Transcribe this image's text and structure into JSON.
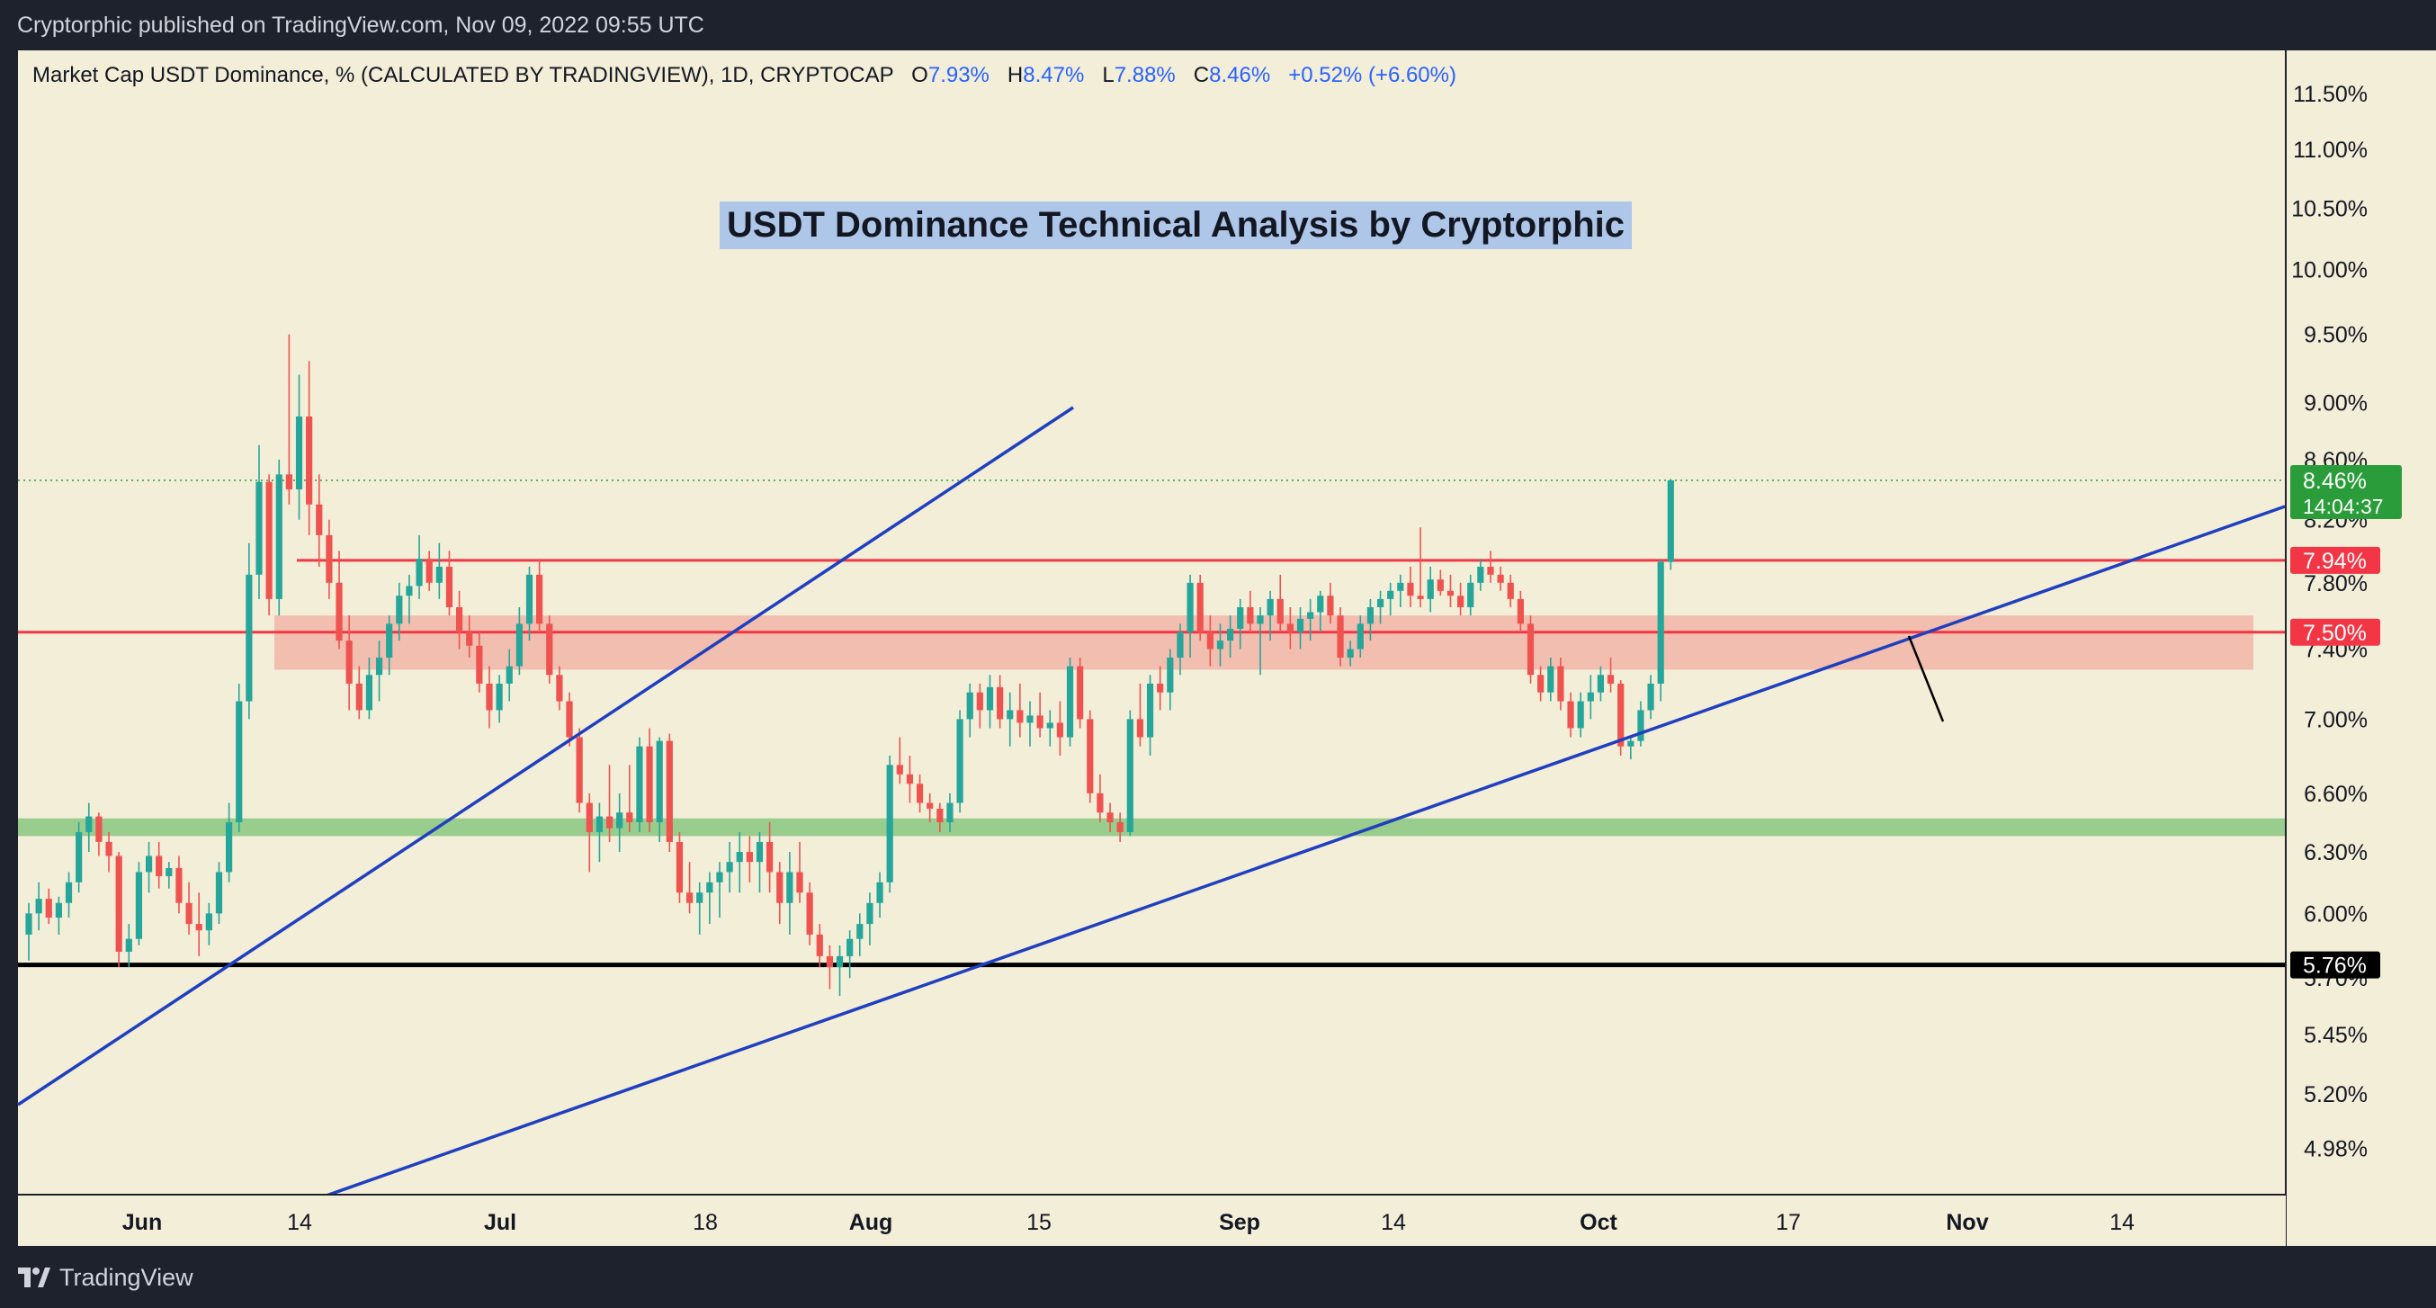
{
  "header": {
    "published": "Cryptorphic published on TradingView.com, Nov 09, 2022 09:55 UTC"
  },
  "legend": {
    "symbol": "Market Cap USDT Dominance, % (CALCULATED BY TRADINGVIEW), 1D, CRYPTOCAP",
    "o_label": "O",
    "o_value": "7.93%",
    "h_label": "H",
    "h_value": "8.47%",
    "l_label": "L",
    "l_value": "7.88%",
    "c_label": "C",
    "c_value": "8.46%",
    "change": "+0.52% (+6.60%)"
  },
  "annotation": {
    "title": "USDT Dominance Technical Analysis by Cryptorphic"
  },
  "footer": {
    "brand": "TradingView"
  },
  "colors": {
    "background": "#f3eed8",
    "up": "#26a69a",
    "down": "#ef5350",
    "trendline": "#1f3fbf",
    "resistance": "#f23645",
    "support_zone": "#5cb85c",
    "support_line": "#000000",
    "price_tag": "#2a9d3a"
  },
  "chart_data": {
    "type": "candlestick",
    "symbol": "Market Cap USDT Dominance, %",
    "interval": "1D",
    "y_scale": "log",
    "ylim": [
      4.8,
      11.9
    ],
    "y_ticks": [
      "11.50%",
      "11.00%",
      "10.50%",
      "10.00%",
      "9.50%",
      "9.00%",
      "8.60%",
      "8.20%",
      "7.80%",
      "7.40%",
      "7.00%",
      "6.60%",
      "6.30%",
      "6.00%",
      "5.70%",
      "5.45%",
      "5.20%",
      "4.98%"
    ],
    "x_ticks": [
      "Jun",
      "14",
      "Jul",
      "18",
      "Aug",
      "15",
      "Sep",
      "14",
      "Oct",
      "17",
      "Nov",
      "14"
    ],
    "last_price": "8.46%",
    "countdown": "14:04:37",
    "levels": [
      {
        "label": "7.94%",
        "value": 7.94,
        "kind": "resistance"
      },
      {
        "label": "7.50%",
        "value": 7.5,
        "kind": "resistance"
      },
      {
        "label": "5.76%",
        "value": 5.76,
        "kind": "support"
      }
    ],
    "zones": [
      {
        "from": 7.28,
        "to": 7.6,
        "color": "red"
      },
      {
        "from": 6.38,
        "to": 6.47,
        "color": "green"
      }
    ],
    "candles": [
      [
        5.9,
        6.05,
        5.78,
        6.0
      ],
      [
        6.0,
        6.15,
        5.92,
        6.07
      ],
      [
        6.07,
        6.12,
        5.95,
        5.98
      ],
      [
        5.98,
        6.08,
        5.9,
        6.05
      ],
      [
        6.05,
        6.2,
        5.98,
        6.15
      ],
      [
        6.15,
        6.45,
        6.1,
        6.4
      ],
      [
        6.4,
        6.55,
        6.3,
        6.48
      ],
      [
        6.48,
        6.5,
        6.28,
        6.35
      ],
      [
        6.35,
        6.4,
        6.2,
        6.28
      ],
      [
        6.28,
        6.3,
        5.75,
        5.82
      ],
      [
        5.82,
        5.95,
        5.75,
        5.88
      ],
      [
        5.88,
        6.25,
        5.85,
        6.2
      ],
      [
        6.2,
        6.35,
        6.1,
        6.28
      ],
      [
        6.28,
        6.35,
        6.12,
        6.18
      ],
      [
        6.18,
        6.25,
        6.12,
        6.22
      ],
      [
        6.22,
        6.28,
        6.0,
        6.05
      ],
      [
        6.05,
        6.15,
        5.9,
        5.95
      ],
      [
        5.95,
        6.1,
        5.8,
        5.92
      ],
      [
        5.92,
        6.05,
        5.85,
        6.0
      ],
      [
        6.0,
        6.25,
        5.95,
        6.2
      ],
      [
        6.2,
        6.55,
        6.15,
        6.45
      ],
      [
        6.45,
        7.2,
        6.4,
        7.1
      ],
      [
        7.1,
        8.05,
        7.0,
        7.85
      ],
      [
        7.85,
        8.7,
        7.7,
        8.45
      ],
      [
        8.45,
        8.5,
        7.6,
        7.7
      ],
      [
        7.7,
        8.6,
        7.6,
        8.5
      ],
      [
        8.5,
        9.5,
        8.3,
        8.4
      ],
      [
        8.4,
        9.2,
        8.2,
        8.9
      ],
      [
        8.9,
        9.3,
        8.1,
        8.3
      ],
      [
        8.3,
        8.5,
        7.9,
        8.1
      ],
      [
        8.1,
        8.2,
        7.7,
        7.8
      ],
      [
        7.8,
        8.0,
        7.4,
        7.45
      ],
      [
        7.45,
        7.6,
        7.05,
        7.2
      ],
      [
        7.2,
        7.3,
        7.0,
        7.05
      ],
      [
        7.05,
        7.35,
        7.0,
        7.25
      ],
      [
        7.25,
        7.45,
        7.1,
        7.35
      ],
      [
        7.35,
        7.6,
        7.25,
        7.55
      ],
      [
        7.55,
        7.8,
        7.45,
        7.72
      ],
      [
        7.72,
        7.85,
        7.55,
        7.78
      ],
      [
        7.78,
        8.1,
        7.7,
        7.95
      ],
      [
        7.95,
        8.0,
        7.75,
        7.8
      ],
      [
        7.8,
        8.05,
        7.7,
        7.9
      ],
      [
        7.9,
        8.0,
        7.6,
        7.65
      ],
      [
        7.65,
        7.75,
        7.4,
        7.5
      ],
      [
        7.5,
        7.6,
        7.35,
        7.42
      ],
      [
        7.42,
        7.5,
        7.15,
        7.2
      ],
      [
        7.2,
        7.3,
        6.95,
        7.05
      ],
      [
        7.05,
        7.25,
        6.98,
        7.2
      ],
      [
        7.2,
        7.4,
        7.1,
        7.3
      ],
      [
        7.3,
        7.65,
        7.25,
        7.55
      ],
      [
        7.55,
        7.9,
        7.45,
        7.85
      ],
      [
        7.85,
        7.95,
        7.5,
        7.55
      ],
      [
        7.55,
        7.6,
        7.2,
        7.25
      ],
      [
        7.25,
        7.3,
        7.05,
        7.1
      ],
      [
        7.1,
        7.15,
        6.85,
        6.9
      ],
      [
        6.9,
        6.95,
        6.5,
        6.55
      ],
      [
        6.55,
        6.6,
        6.2,
        6.4
      ],
      [
        6.4,
        6.55,
        6.25,
        6.48
      ],
      [
        6.48,
        6.75,
        6.35,
        6.42
      ],
      [
        6.42,
        6.6,
        6.3,
        6.5
      ],
      [
        6.5,
        6.75,
        6.4,
        6.45
      ],
      [
        6.45,
        6.9,
        6.4,
        6.85
      ],
      [
        6.85,
        6.95,
        6.4,
        6.45
      ],
      [
        6.45,
        6.9,
        6.35,
        6.88
      ],
      [
        6.88,
        6.92,
        6.3,
        6.35
      ],
      [
        6.35,
        6.4,
        6.05,
        6.1
      ],
      [
        6.1,
        6.25,
        6.0,
        6.05
      ],
      [
        6.05,
        6.15,
        5.9,
        6.1
      ],
      [
        6.1,
        6.2,
        5.95,
        6.15
      ],
      [
        6.15,
        6.25,
        5.98,
        6.2
      ],
      [
        6.2,
        6.35,
        6.1,
        6.25
      ],
      [
        6.25,
        6.4,
        6.1,
        6.3
      ],
      [
        6.3,
        6.38,
        6.15,
        6.25
      ],
      [
        6.25,
        6.4,
        6.1,
        6.35
      ],
      [
        6.35,
        6.45,
        6.1,
        6.2
      ],
      [
        6.2,
        6.25,
        5.95,
        6.05
      ],
      [
        6.05,
        6.3,
        5.9,
        6.2
      ],
      [
        6.2,
        6.35,
        6.05,
        6.1
      ],
      [
        6.1,
        6.15,
        5.85,
        5.9
      ],
      [
        5.9,
        5.95,
        5.75,
        5.8
      ],
      [
        5.8,
        5.85,
        5.65,
        5.75
      ],
      [
        5.75,
        5.85,
        5.62,
        5.8
      ],
      [
        5.8,
        5.92,
        5.7,
        5.88
      ],
      [
        5.88,
        6.0,
        5.8,
        5.95
      ],
      [
        5.95,
        6.1,
        5.85,
        6.05
      ],
      [
        6.05,
        6.2,
        5.98,
        6.15
      ],
      [
        6.15,
        6.8,
        6.1,
        6.75
      ],
      [
        6.75,
        6.9,
        6.65,
        6.7
      ],
      [
        6.7,
        6.8,
        6.55,
        6.65
      ],
      [
        6.65,
        6.7,
        6.5,
        6.55
      ],
      [
        6.55,
        6.6,
        6.45,
        6.52
      ],
      [
        6.52,
        6.55,
        6.4,
        6.45
      ],
      [
        6.45,
        6.6,
        6.4,
        6.55
      ],
      [
        6.55,
        7.05,
        6.5,
        7.0
      ],
      [
        7.0,
        7.2,
        6.9,
        7.15
      ],
      [
        7.15,
        7.2,
        6.95,
        7.05
      ],
      [
        7.05,
        7.25,
        6.95,
        7.18
      ],
      [
        7.18,
        7.25,
        6.95,
        7.0
      ],
      [
        7.0,
        7.15,
        6.85,
        7.05
      ],
      [
        7.05,
        7.2,
        6.9,
        6.98
      ],
      [
        6.98,
        7.1,
        6.85,
        7.02
      ],
      [
        7.02,
        7.15,
        6.9,
        6.95
      ],
      [
        6.95,
        7.05,
        6.85,
        6.98
      ],
      [
        6.98,
        7.1,
        6.8,
        6.9
      ],
      [
        6.9,
        7.35,
        6.85,
        7.3
      ],
      [
        7.3,
        7.35,
        6.95,
        7.0
      ],
      [
        7.0,
        7.05,
        6.55,
        6.6
      ],
      [
        6.6,
        6.7,
        6.45,
        6.5
      ],
      [
        6.5,
        6.55,
        6.4,
        6.45
      ],
      [
        6.45,
        6.5,
        6.35,
        6.4
      ],
      [
        6.4,
        7.05,
        6.38,
        7.0
      ],
      [
        7.0,
        7.2,
        6.85,
        6.9
      ],
      [
        6.9,
        7.25,
        6.8,
        7.2
      ],
      [
        7.2,
        7.3,
        7.05,
        7.15
      ],
      [
        7.15,
        7.4,
        7.05,
        7.35
      ],
      [
        7.35,
        7.55,
        7.25,
        7.5
      ],
      [
        7.5,
        7.85,
        7.35,
        7.8
      ],
      [
        7.8,
        7.85,
        7.45,
        7.5
      ],
      [
        7.5,
        7.6,
        7.3,
        7.4
      ],
      [
        7.4,
        7.55,
        7.3,
        7.45
      ],
      [
        7.45,
        7.6,
        7.35,
        7.52
      ],
      [
        7.52,
        7.7,
        7.4,
        7.65
      ],
      [
        7.65,
        7.75,
        7.5,
        7.55
      ],
      [
        7.55,
        7.65,
        7.25,
        7.6
      ],
      [
        7.6,
        7.75,
        7.45,
        7.7
      ],
      [
        7.7,
        7.85,
        7.5,
        7.55
      ],
      [
        7.55,
        7.65,
        7.4,
        7.5
      ],
      [
        7.5,
        7.65,
        7.4,
        7.58
      ],
      [
        7.58,
        7.7,
        7.45,
        7.62
      ],
      [
        7.62,
        7.75,
        7.5,
        7.72
      ],
      [
        7.72,
        7.8,
        7.55,
        7.6
      ],
      [
        7.6,
        7.65,
        7.3,
        7.35
      ],
      [
        7.35,
        7.45,
        7.3,
        7.4
      ],
      [
        7.4,
        7.6,
        7.35,
        7.55
      ],
      [
        7.55,
        7.7,
        7.45,
        7.65
      ],
      [
        7.65,
        7.75,
        7.55,
        7.7
      ],
      [
        7.7,
        7.8,
        7.6,
        7.75
      ],
      [
        7.75,
        7.85,
        7.65,
        7.8
      ],
      [
        7.8,
        7.9,
        7.65,
        7.72
      ],
      [
        7.72,
        8.15,
        7.65,
        7.7
      ],
      [
        7.7,
        7.9,
        7.62,
        7.82
      ],
      [
        7.82,
        7.88,
        7.72,
        7.75
      ],
      [
        7.75,
        7.85,
        7.65,
        7.72
      ],
      [
        7.72,
        7.8,
        7.6,
        7.65
      ],
      [
        7.65,
        7.85,
        7.6,
        7.8
      ],
      [
        7.8,
        7.95,
        7.75,
        7.9
      ],
      [
        7.9,
        8.0,
        7.8,
        7.85
      ],
      [
        7.85,
        7.9,
        7.75,
        7.8
      ],
      [
        7.8,
        7.85,
        7.65,
        7.7
      ],
      [
        7.7,
        7.75,
        7.5,
        7.55
      ],
      [
        7.55,
        7.6,
        7.2,
        7.25
      ],
      [
        7.25,
        7.3,
        7.1,
        7.15
      ],
      [
        7.15,
        7.35,
        7.1,
        7.3
      ],
      [
        7.3,
        7.35,
        7.05,
        7.1
      ],
      [
        7.1,
        7.15,
        6.9,
        6.95
      ],
      [
        6.95,
        7.15,
        6.9,
        7.1
      ],
      [
        7.1,
        7.25,
        7.0,
        7.15
      ],
      [
        7.15,
        7.3,
        7.1,
        7.25
      ],
      [
        7.25,
        7.35,
        7.15,
        7.2
      ],
      [
        7.2,
        7.22,
        6.8,
        6.85
      ],
      [
        6.85,
        6.9,
        6.78,
        6.88
      ],
      [
        6.88,
        7.1,
        6.85,
        7.05
      ],
      [
        7.05,
        7.25,
        7.0,
        7.2
      ],
      [
        7.2,
        7.95,
        7.1,
        7.93
      ],
      [
        7.93,
        8.47,
        7.88,
        8.46
      ]
    ]
  }
}
